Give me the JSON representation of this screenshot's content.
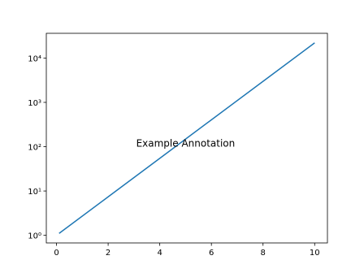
{
  "chart_data": {
    "type": "line",
    "x": [
      0.1,
      2,
      4,
      6,
      8,
      10
    ],
    "series": [
      {
        "color": "#1f77b4",
        "values": [
          1.105,
          7.389,
          54.6,
          403.4,
          2981,
          22026
        ]
      }
    ],
    "xlim": [
      -0.395,
      10.495
    ],
    "ylim": [
      0.673,
      36150
    ],
    "log_y": true,
    "xticks": [
      0,
      2,
      4,
      6,
      8,
      10
    ],
    "yticks": [
      {
        "value": 1,
        "label": "10⁰"
      },
      {
        "value": 10,
        "label": "10¹"
      },
      {
        "value": 100,
        "label": "10²"
      },
      {
        "value": 1000,
        "label": "10³"
      },
      {
        "value": 10000,
        "label": "10⁴"
      }
    ],
    "annotations": [
      {
        "text": "Example Annotation",
        "x": 5,
        "y": 100
      }
    ]
  }
}
